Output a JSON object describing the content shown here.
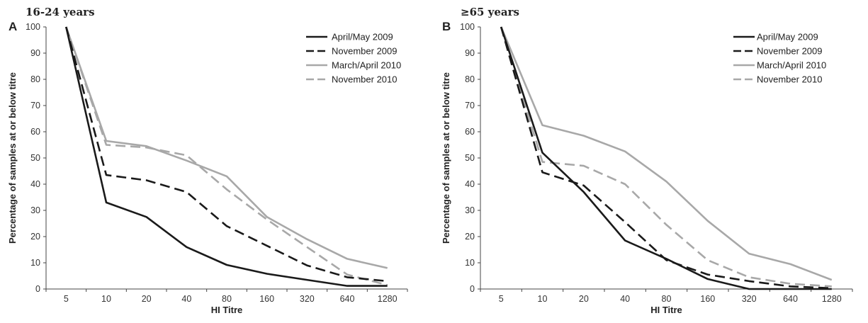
{
  "chart_data": [
    {
      "type": "line",
      "panel_label": "A",
      "title": "16-24 years",
      "xlabel": "HI Titre",
      "ylabel": "Percentage of samples at or below titre",
      "ylim": [
        0,
        100
      ],
      "yticks": [
        "0",
        "10",
        "20",
        "30",
        "40",
        "50",
        "60",
        "70",
        "80",
        "90",
        "100"
      ],
      "categories": [
        "5",
        "10",
        "20",
        "40",
        "80",
        "160",
        "320",
        "640",
        "1280"
      ],
      "legend_position": "top-right",
      "grid": false,
      "series": [
        {
          "name": "April/May 2009",
          "color": "#1a1a1a",
          "dash": "solid",
          "values": [
            100,
            33,
            27.5,
            16,
            9.2,
            5.8,
            3.5,
            1.2,
            1.2
          ]
        },
        {
          "name": "November 2009",
          "color": "#1a1a1a",
          "dash": "dashed",
          "values": [
            100,
            43.5,
            41.5,
            37,
            24,
            16.5,
            9,
            4.5,
            3
          ]
        },
        {
          "name": "March/April 2010",
          "color": "#a8a8a8",
          "dash": "solid",
          "values": [
            100,
            56.5,
            54.5,
            49,
            43,
            27.5,
            19,
            11.5,
            8
          ]
        },
        {
          "name": "November 2010",
          "color": "#a8a8a8",
          "dash": "dashed",
          "values": [
            100,
            55,
            54,
            51,
            38,
            26.5,
            16,
            5.5,
            1.5
          ]
        }
      ]
    },
    {
      "type": "line",
      "panel_label": "B",
      "title": "≥65 years",
      "xlabel": "HI Titre",
      "ylabel": "Percentage of samples at or below titre",
      "ylim": [
        0,
        100
      ],
      "yticks": [
        "0",
        "10",
        "20",
        "30",
        "40",
        "50",
        "60",
        "70",
        "80",
        "90",
        "100"
      ],
      "categories": [
        "5",
        "10",
        "20",
        "40",
        "80",
        "160",
        "320",
        "640",
        "1280"
      ],
      "legend_position": "top-right",
      "grid": false,
      "series": [
        {
          "name": "April/May 2009",
          "color": "#1a1a1a",
          "dash": "solid",
          "values": [
            100,
            52,
            37,
            18.5,
            11.5,
            3.8,
            0,
            0,
            0
          ]
        },
        {
          "name": "November 2009",
          "color": "#1a1a1a",
          "dash": "dashed",
          "values": [
            100,
            44.5,
            39.5,
            25.5,
            11,
            5.5,
            3,
            1,
            0.3
          ]
        },
        {
          "name": "March/April 2010",
          "color": "#a8a8a8",
          "dash": "solid",
          "values": [
            100,
            62.5,
            58.5,
            52.5,
            41,
            26,
            13.5,
            9.5,
            3.5
          ]
        },
        {
          "name": "November 2010",
          "color": "#a8a8a8",
          "dash": "dashed",
          "values": [
            100,
            48.5,
            47,
            40,
            24.5,
            11,
            4.5,
            2,
            1
          ]
        }
      ]
    }
  ]
}
